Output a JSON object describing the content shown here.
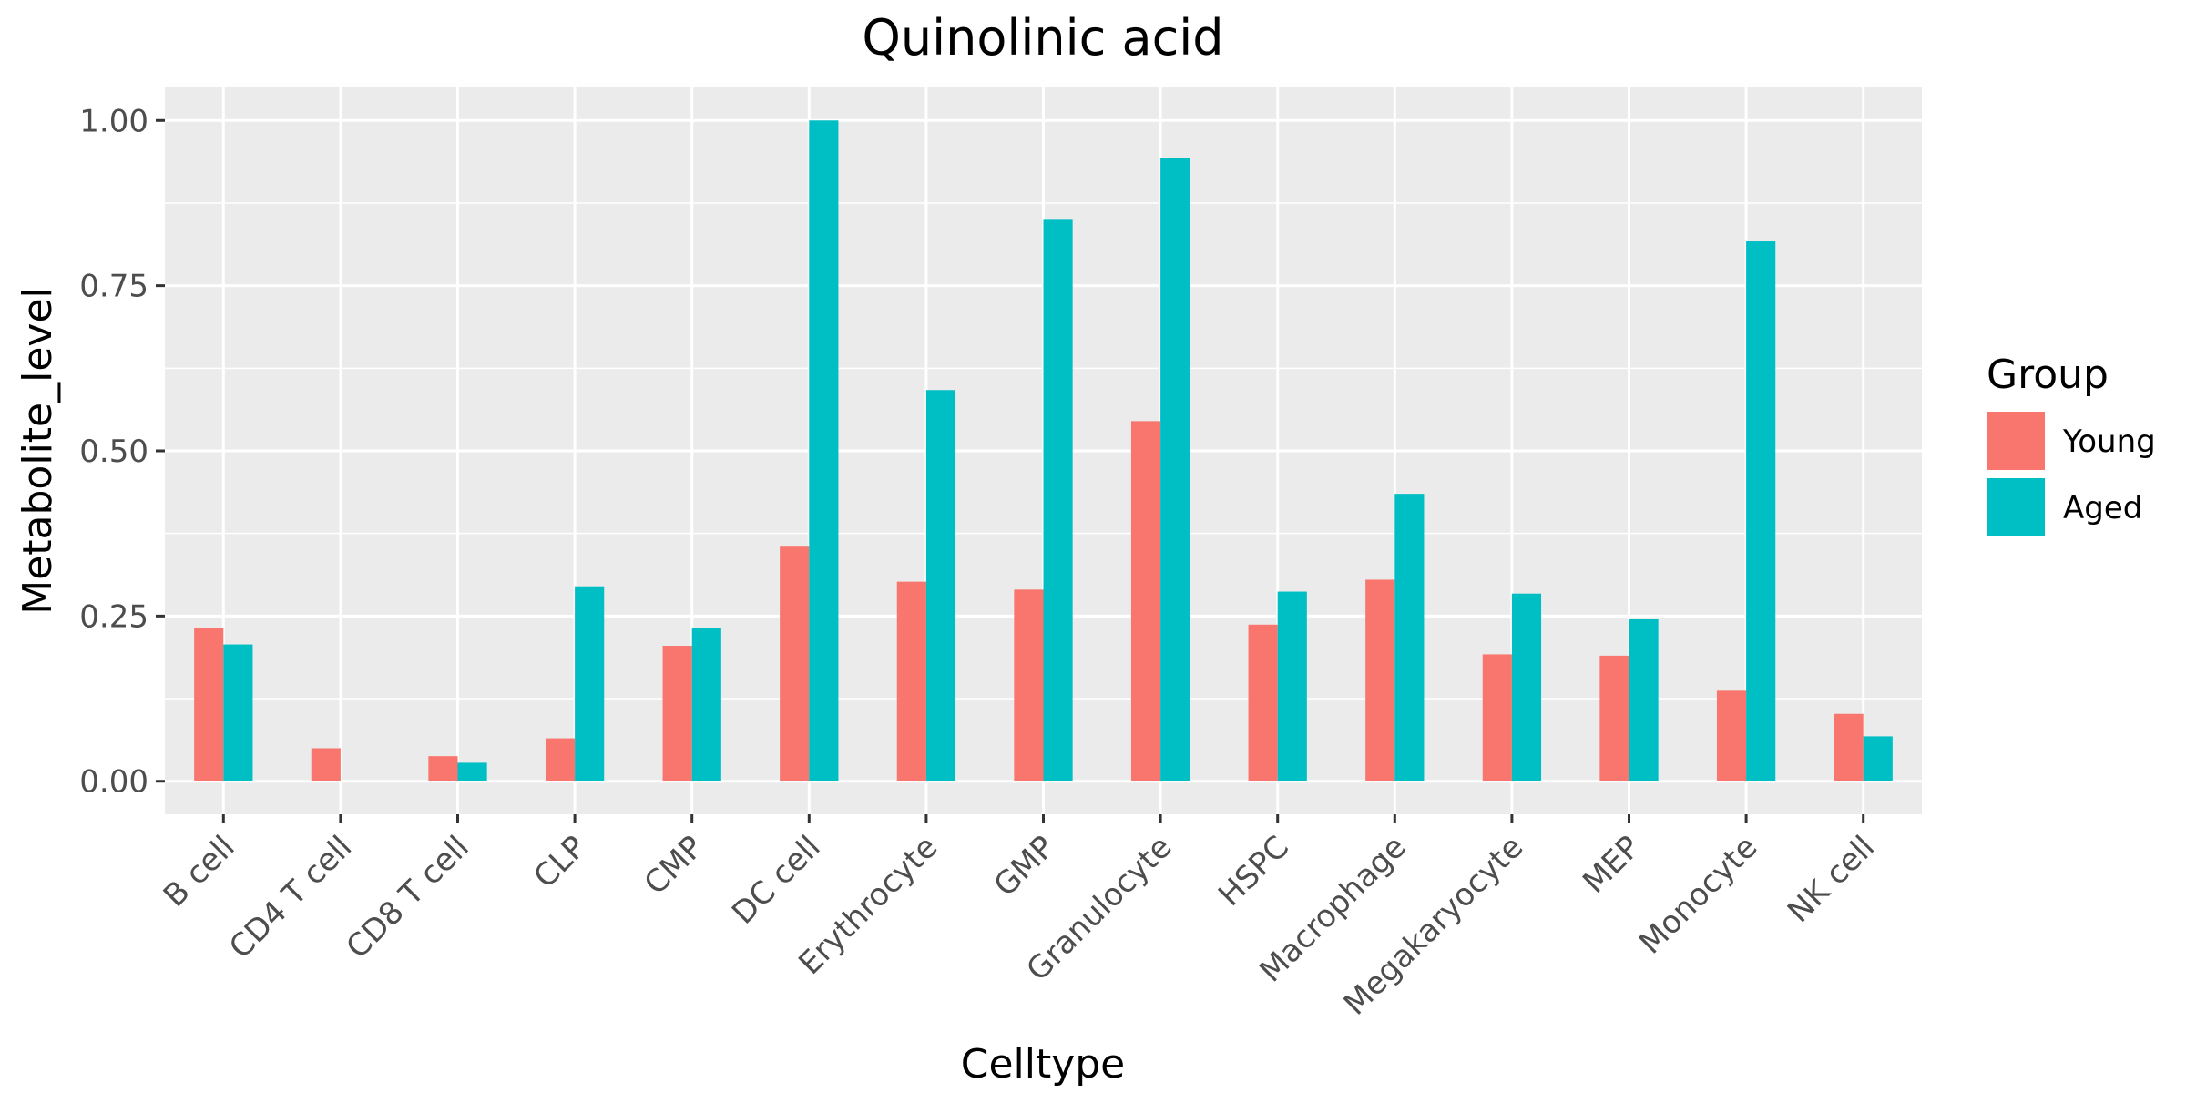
{
  "chart_data": {
    "type": "bar",
    "title": "Quinolinic acid",
    "xlabel": "Celltype",
    "ylabel": "Metabolite_level",
    "categories": [
      "B cell",
      "CD4 T cell",
      "CD8 T cell",
      "CLP",
      "CMP",
      "DC cell",
      "Erythrocyte",
      "GMP",
      "Granulocyte",
      "HSPC",
      "Macrophage",
      "Megakaryocyte",
      "MEP",
      "Monocyte",
      "NK cell"
    ],
    "series": [
      {
        "name": "Young",
        "color": "#F8766D",
        "values": [
          0.232,
          0.05,
          0.038,
          0.065,
          0.205,
          0.355,
          0.302,
          0.29,
          0.545,
          0.237,
          0.305,
          0.192,
          0.19,
          0.137,
          0.102
        ]
      },
      {
        "name": "Aged",
        "color": "#00BFC4",
        "values": [
          0.207,
          0.0,
          0.028,
          0.295,
          0.232,
          1.0,
          0.592,
          0.851,
          0.943,
          0.287,
          0.435,
          0.284,
          0.245,
          0.817,
          0.068
        ]
      }
    ],
    "ylim": [
      -0.05,
      1.05
    ],
    "yticks": [
      "0.00",
      "0.25",
      "0.50",
      "0.75",
      "1.00"
    ],
    "ytick_values": [
      0,
      0.25,
      0.5,
      0.75,
      1.0
    ],
    "legend": {
      "title": "Group",
      "position": "right"
    },
    "grid": true,
    "panel_background": "#EBEBEB"
  }
}
